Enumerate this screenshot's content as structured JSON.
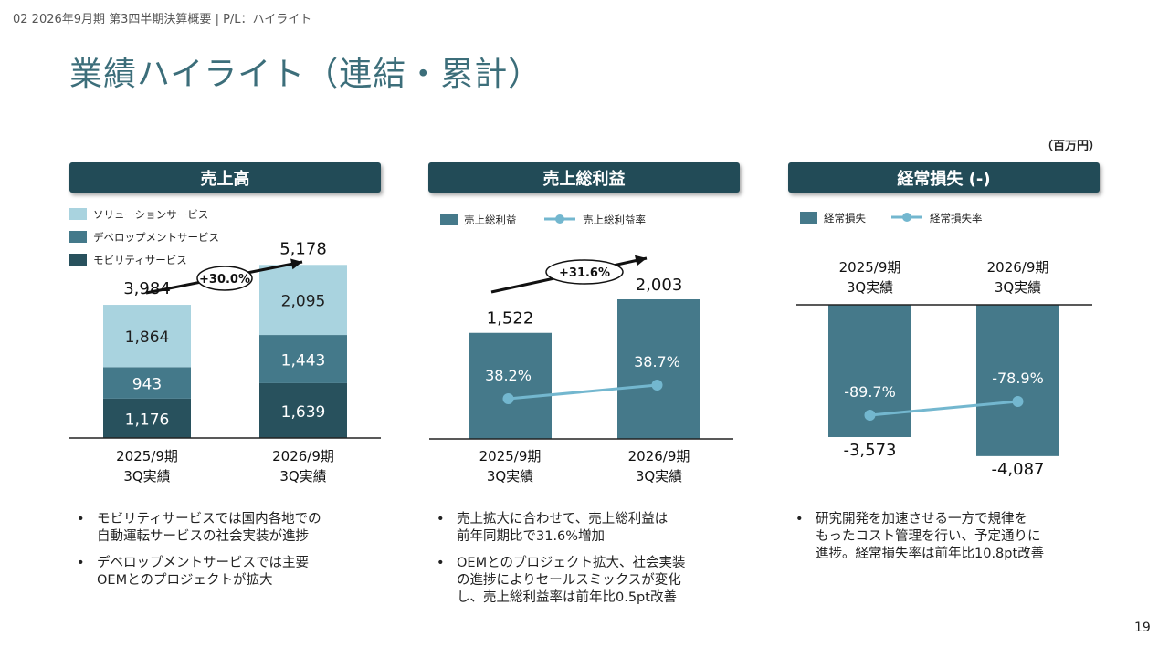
{
  "breadcrumb": "02 2026年9月期 第3四半期決算概要 | P/L：ハイライト",
  "page_title": "業績ハイライト（連結・累計）",
  "unit": "（百万円）",
  "page_number": "19",
  "colors": {
    "header": "#224b57",
    "solution": "#a9d3df",
    "development": "#44798a",
    "mobility": "#28515d",
    "bar": "#45798a",
    "line": "#73b7cf"
  },
  "panels": [
    {
      "header": "売上高"
    },
    {
      "header": "売上総利益"
    },
    {
      "header": "経常損失 (-)"
    }
  ],
  "chart_data": [
    {
      "type": "bar",
      "stacked": true,
      "title": "売上高",
      "categories": [
        "2025/9期\n3Q実績",
        "2026/9期\n3Q実績"
      ],
      "series": [
        {
          "name": "ソリューションサービス",
          "values": [
            1864,
            2095
          ],
          "labels": [
            "1,864",
            "2,095"
          ]
        },
        {
          "name": "デベロップメントサービス",
          "values": [
            943,
            1443
          ],
          "labels": [
            "943",
            "1,443"
          ]
        },
        {
          "name": "モビリティサービス",
          "values": [
            1176,
            1639
          ],
          "labels": [
            "1,176",
            "1,639"
          ]
        }
      ],
      "totals": [
        3984,
        5178
      ],
      "total_labels": [
        "3,984",
        "5,178"
      ],
      "growth_label": "+30.0%",
      "legend_position": "top-left"
    },
    {
      "type": "bar",
      "title": "売上総利益",
      "categories": [
        "2025/9期\n3Q実績",
        "2026/9期\n3Q実績"
      ],
      "series": [
        {
          "name": "売上総利益",
          "values": [
            1522,
            2003
          ],
          "labels": [
            "1,522",
            "2,003"
          ]
        },
        {
          "name": "売上総利益率",
          "type": "line",
          "values": [
            38.2,
            38.7
          ],
          "labels": [
            "38.2%",
            "38.7%"
          ]
        }
      ],
      "growth_label": "+31.6%",
      "legend_position": "top-left"
    },
    {
      "type": "bar",
      "title": "経常損失 (-)",
      "categories": [
        "2025/9期\n3Q実績",
        "2026/9期\n3Q実績"
      ],
      "series": [
        {
          "name": "経常損失",
          "values": [
            -3573,
            -4087
          ],
          "labels": [
            "-3,573",
            "-4,087"
          ]
        },
        {
          "name": "経常損失率",
          "type": "line",
          "values": [
            -89.7,
            -78.9
          ],
          "labels": [
            "-89.7%",
            "-78.9%"
          ]
        }
      ],
      "legend_position": "top-left"
    }
  ],
  "bullets": [
    [
      "モビリティサービスでは国内各地での\n自動運転サービスの社会実装が進捗",
      "デベロップメントサービスでは主要\nOEMとのプロジェクトが拡大"
    ],
    [
      "売上拡大に合わせて、売上総利益は\n前年同期比で31.6%増加",
      "OEMとのプロジェクト拡大、社会実装\nの進捗によりセールスミックスが変化\nし、売上総利益率は前年比0.5pt改善"
    ],
    [
      "研究開発を加速させる一方で規律を\nもったコスト管理を行い、予定通りに\n進捗。経常損失率は前年比10.8pt改善"
    ]
  ]
}
